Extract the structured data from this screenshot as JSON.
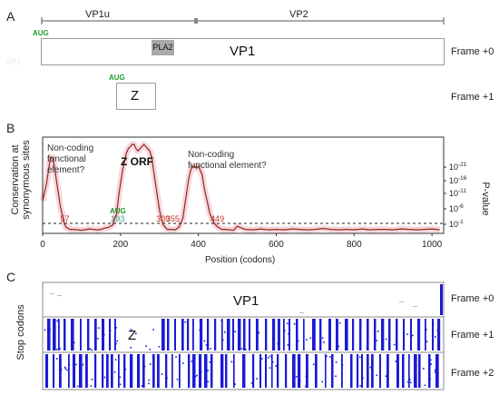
{
  "panelA": {
    "letter": "A",
    "segments": [
      {
        "label": "VP1u"
      },
      {
        "label": "VP2"
      }
    ],
    "vp1": {
      "label": "VP1",
      "aug": "AUG",
      "frame": "Frame +0",
      "faded_text": "VP1"
    },
    "pla2": {
      "label": "PLA2"
    },
    "z": {
      "label": "Z",
      "aug": "AUG",
      "frame": "Frame +1"
    }
  },
  "panelB": {
    "letter": "B",
    "ylabel_left": "Conservation at\nsynonymous sites",
    "ylabel_right": "P-value",
    "xlabel": "Position (codons)",
    "annotations": [
      {
        "text": "Non-coding\nfunctional\nelement?"
      },
      {
        "text": "Z ORF"
      },
      {
        "text": "Non-coding\nfunctional element?"
      }
    ],
    "aug": "AUG",
    "markers": [
      {
        "text": "57"
      },
      {
        "text": "193"
      },
      {
        "text": "309"
      },
      {
        "text": "355"
      },
      {
        "text": "449"
      }
    ]
  },
  "panelC": {
    "letter": "C",
    "ylabel": "Stop codons",
    "vp1_label": "VP1",
    "z_label": "Z",
    "frames": [
      "Frame +0",
      "Frame +1",
      "Frame +2"
    ]
  },
  "chart_data": {
    "type": "line",
    "xlabel": "Position (codons)",
    "ylabel": "Conservation at synonymous sites",
    "y2label": "P-value",
    "xlim": [
      0,
      1030
    ],
    "xticks": [
      "0",
      "200",
      "400",
      "600",
      "800",
      "1000"
    ],
    "y2ticks": [
      "10^-21",
      "10^-16",
      "10^-11",
      "10^-6",
      "10^-1"
    ],
    "threshold_line": "dashed",
    "colors": {
      "line": "#8b2a1a",
      "glow": "#f4b7c6",
      "markers": "#c0392b",
      "aug": "#1f9c2c",
      "stops": "#1a1ad6"
    },
    "series": [
      {
        "x": [
          0,
          5,
          10,
          15,
          20,
          25,
          30,
          35,
          40,
          45,
          50,
          55,
          60,
          70,
          80,
          100,
          120,
          140,
          150,
          160,
          170,
          180,
          185,
          190,
          195,
          200,
          205,
          210,
          215,
          220,
          225,
          230,
          235,
          240,
          245,
          250,
          255,
          260,
          265,
          270,
          275,
          280,
          285,
          290,
          295,
          300,
          305,
          310,
          315,
          320,
          330,
          340,
          350,
          360,
          365,
          370,
          375,
          380,
          385,
          390,
          395,
          400,
          405,
          410,
          415,
          420,
          425,
          430,
          435,
          440,
          445,
          450,
          455,
          460,
          470,
          480,
          490,
          500,
          520,
          540,
          560,
          580,
          600,
          620,
          640,
          660,
          680,
          700,
          720,
          740,
          760,
          780,
          800,
          820,
          840,
          860,
          880,
          900,
          920,
          940,
          960,
          980,
          1000,
          1020
        ],
        "y": [
          7,
          9,
          11,
          14,
          17,
          17,
          15,
          12,
          9,
          6,
          4,
          2,
          1,
          0.5,
          0.5,
          0.3,
          0.6,
          0.4,
          0.5,
          0.8,
          1,
          1.5,
          3,
          4,
          8,
          11,
          14,
          16,
          18,
          19,
          19.5,
          20,
          20,
          19,
          18.5,
          19,
          19.5,
          20,
          19.5,
          19,
          18.5,
          17,
          14,
          11,
          8,
          5,
          3,
          1.5,
          1,
          0.5,
          0.5,
          0.4,
          1,
          3,
          6,
          9,
          12,
          14,
          15,
          15,
          14.5,
          15,
          14,
          13,
          10,
          8,
          6,
          4,
          3,
          2,
          1.5,
          1,
          0.8,
          0.5,
          0.5,
          0.4,
          0.3,
          1.2,
          0.5,
          0.4,
          0.6,
          0.4,
          0.5,
          0.4,
          0.6,
          0.5,
          0.4,
          0.5,
          0.7,
          0.5,
          0.4,
          0.5,
          0.4,
          0.6,
          0.4,
          0.5,
          0.5,
          0.4,
          0.6,
          0.5,
          0.4,
          0.5,
          0.6,
          0.4
        ]
      }
    ]
  }
}
